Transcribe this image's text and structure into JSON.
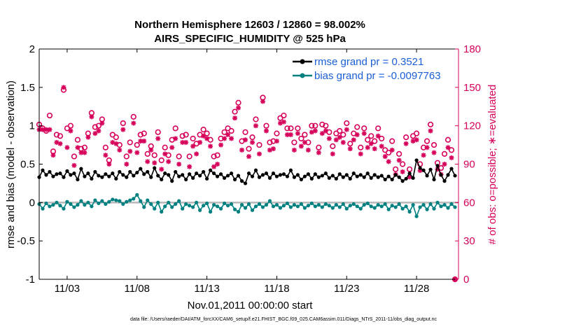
{
  "chart_data": {
    "type": "line",
    "title": "Northern Hemisphere 12603 / 12860 = 98.002%",
    "subtitle": "AIRS_SPECIFIC_HUMIDITY @ 525 hPa",
    "xlabel": "Nov.01,2011 00:00:00 start",
    "ylabel_left": "rmse and bias (model - observation)",
    "ylabel_right": "# of obs: o=possible; ∗=evaluated",
    "ylim_left": [
      -1,
      2
    ],
    "ylim_right": [
      0,
      180
    ],
    "xlim_days": [
      1,
      31
    ],
    "x_ticks": [
      {
        "day": 3,
        "label": "11/03"
      },
      {
        "day": 8,
        "label": "11/08"
      },
      {
        "day": 13,
        "label": "11/13"
      },
      {
        "day": 18,
        "label": "11/18"
      },
      {
        "day": 23,
        "label": "11/23"
      },
      {
        "day": 28,
        "label": "11/28"
      }
    ],
    "y_ticks_left": [
      {
        "v": 2,
        "label": "2"
      },
      {
        "v": 1.5,
        "label": "1.5"
      },
      {
        "v": 1,
        "label": "1"
      },
      {
        "v": 0.5,
        "label": "0.5"
      },
      {
        "v": 0,
        "label": "0"
      },
      {
        "v": -0.5,
        "label": "-0.5"
      },
      {
        "v": -1,
        "label": "-1"
      }
    ],
    "y_ticks_right": [
      {
        "v": 180,
        "label": "180"
      },
      {
        "v": 150,
        "label": "150"
      },
      {
        "v": 120,
        "label": "120"
      },
      {
        "v": 90,
        "label": "90"
      },
      {
        "v": 60,
        "label": "60"
      },
      {
        "v": 30,
        "label": "30"
      },
      {
        "v": 0,
        "label": "0"
      }
    ],
    "legend": [
      {
        "name": "rmse grand pr = 0.3521",
        "color": "#000000"
      },
      {
        "name": "bias grand pr = -0.0097763",
        "color": "#008080"
      }
    ],
    "x_days": [
      1.0,
      1.25,
      1.5,
      1.75,
      2.0,
      2.25,
      2.5,
      2.75,
      3.0,
      3.25,
      3.5,
      3.75,
      4.0,
      4.25,
      4.5,
      4.75,
      5.0,
      5.25,
      5.5,
      5.75,
      6.0,
      6.25,
      6.5,
      6.75,
      7.0,
      7.25,
      7.5,
      7.75,
      8.0,
      8.25,
      8.5,
      8.75,
      9.0,
      9.25,
      9.5,
      9.75,
      10.0,
      10.25,
      10.5,
      10.75,
      11.0,
      11.25,
      11.5,
      11.75,
      12.0,
      12.25,
      12.5,
      12.75,
      13.0,
      13.25,
      13.5,
      13.75,
      14.0,
      14.25,
      14.5,
      14.75,
      15.0,
      15.25,
      15.5,
      15.75,
      16.0,
      16.25,
      16.5,
      16.75,
      17.0,
      17.25,
      17.5,
      17.75,
      18.0,
      18.25,
      18.5,
      18.75,
      19.0,
      19.25,
      19.5,
      19.75,
      20.0,
      20.25,
      20.5,
      20.75,
      21.0,
      21.25,
      21.5,
      21.75,
      22.0,
      22.25,
      22.5,
      22.75,
      23.0,
      23.25,
      23.5,
      23.75,
      24.0,
      24.25,
      24.5,
      24.75,
      25.0,
      25.25,
      25.5,
      25.75,
      26.0,
      26.25,
      26.5,
      26.75,
      27.0,
      27.25,
      27.5,
      27.75,
      28.0,
      28.25,
      28.5,
      28.75,
      29.0,
      29.25,
      29.5,
      29.75,
      30.0,
      30.25,
      30.5,
      30.75
    ],
    "series": [
      {
        "name": "rmse",
        "color": "#000000",
        "values": [
          0.33,
          0.42,
          0.36,
          0.4,
          0.34,
          0.37,
          0.38,
          0.33,
          0.41,
          0.36,
          0.38,
          0.3,
          0.44,
          0.34,
          0.38,
          0.31,
          0.4,
          0.35,
          0.33,
          0.37,
          0.34,
          0.38,
          0.31,
          0.4,
          0.36,
          0.33,
          0.4,
          0.35,
          0.39,
          0.44,
          0.37,
          0.4,
          0.33,
          0.45,
          0.35,
          0.3,
          0.38,
          0.36,
          0.28,
          0.4,
          0.34,
          0.36,
          0.3,
          0.37,
          0.32,
          0.38,
          0.35,
          0.4,
          0.31,
          0.42,
          0.38,
          0.34,
          0.37,
          0.32,
          0.35,
          0.38,
          0.3,
          0.35,
          0.28,
          0.25,
          0.38,
          0.34,
          0.42,
          0.33,
          0.36,
          0.38,
          0.32,
          0.38,
          0.34,
          0.36,
          0.37,
          0.34,
          0.42,
          0.33,
          0.36,
          0.3,
          0.34,
          0.37,
          0.31,
          0.37,
          0.33,
          0.35,
          0.38,
          0.32,
          0.35,
          0.31,
          0.37,
          0.33,
          0.36,
          0.31,
          0.38,
          0.34,
          0.36,
          0.33,
          0.38,
          0.32,
          0.36,
          0.33,
          0.35,
          0.3,
          0.34,
          0.3,
          0.36,
          0.33,
          0.28,
          0.31,
          0.38,
          0.32,
          0.55,
          0.45,
          0.42,
          0.35,
          0.43,
          0.3,
          0.48,
          0.36,
          0.28,
          0.36,
          0.44,
          0.35
        ]
      },
      {
        "name": "bias",
        "color": "#008080",
        "values": [
          -0.02,
          -0.08,
          -0.01,
          -0.05,
          -0.03,
          0.0,
          -0.04,
          -0.08,
          0.01,
          -0.02,
          -0.06,
          -0.03,
          0.02,
          -0.03,
          0.0,
          -0.05,
          0.03,
          -0.01,
          0.02,
          -0.02,
          0.01,
          0.04,
          0.03,
          0.02,
          -0.02,
          0.01,
          0.03,
          0.05,
          0.1,
          0.02,
          -0.06,
          0.03,
          -0.02,
          -0.08,
          0.0,
          -0.12,
          -0.05,
          0.0,
          -0.06,
          -0.02,
          0.02,
          -0.08,
          -0.02,
          -0.04,
          -0.06,
          0.0,
          -0.1,
          -0.04,
          -0.01,
          -0.12,
          -0.03,
          -0.05,
          -0.08,
          -0.01,
          -0.04,
          -0.02,
          -0.09,
          -0.12,
          -0.03,
          -0.07,
          -0.02,
          -0.1,
          -0.05,
          -0.02,
          -0.06,
          -0.03,
          0.02,
          -0.05,
          -0.03,
          -0.07,
          -0.04,
          -0.01,
          -0.06,
          -0.03,
          -0.05,
          -0.02,
          -0.07,
          -0.04,
          -0.01,
          -0.05,
          -0.03,
          -0.06,
          -0.02,
          -0.04,
          -0.07,
          -0.03,
          -0.06,
          -0.02,
          -0.08,
          -0.04,
          -0.02,
          -0.05,
          -0.08,
          -0.03,
          -0.01,
          -0.05,
          -0.07,
          -0.03,
          -0.05,
          -0.02,
          -0.09,
          -0.04,
          -0.06,
          -0.02,
          -0.08,
          -0.05,
          -0.12,
          -0.03,
          -0.18,
          -0.06,
          -0.03,
          -0.09,
          -0.02,
          -0.08,
          0.0,
          -0.05,
          -0.03,
          -0.07,
          -0.02,
          -0.06
        ]
      },
      {
        "name": "obs possible",
        "color": "#d6005a",
        "marker": "o",
        "values": [
          121,
          118,
          116,
          128,
          100,
          113,
          112,
          148,
          118,
          120,
          96,
          109,
          102,
          103,
          114,
          130,
          119,
          120,
          125,
          103,
          93,
          113,
          111,
          105,
          122,
          96,
          107,
          127,
          105,
          113,
          114,
          98,
          104,
          97,
          115,
          93,
          103,
          97,
          109,
          118,
          96,
          112,
          113,
          96,
          110,
          106,
          113,
          117,
          114,
          109,
          96,
          97,
          110,
          115,
          118,
          116,
          131,
          138,
          108,
          115,
          102,
          111,
          125,
          105,
          142,
          120,
          107,
          108,
          114,
          126,
          128,
          118,
          118,
          107,
          118,
          110,
          113,
          107,
          120,
          120,
          103,
          121,
          120,
          115,
          104,
          114,
          116,
          113,
          122,
          106,
          114,
          119,
          103,
          118,
          109,
          112,
          108,
          118,
          110,
          101,
          99,
          108,
          86,
          98,
          90,
          111,
          86,
          112,
          114,
          90,
          103,
          108,
          121,
          105,
          91,
          87,
          98,
          109,
          101,
          0
        ]
      },
      {
        "name": "obs evaluated",
        "color": "#d6005a",
        "marker": "*",
        "values": [
          117,
          117,
          117,
          117,
          97,
          107,
          106,
          150,
          103,
          116,
          89,
          103,
          99,
          99,
          111,
          127,
          114,
          116,
          122,
          97,
          90,
          107,
          106,
          101,
          117,
          90,
          100,
          122,
          99,
          108,
          108,
          92,
          101,
          91,
          110,
          86,
          98,
          92,
          103,
          110,
          90,
          107,
          107,
          88,
          104,
          98,
          107,
          112,
          110,
          104,
          88,
          90,
          105,
          110,
          113,
          110,
          126,
          134,
          101,
          109,
          96,
          107,
          120,
          98,
          139,
          116,
          101,
          102,
          108,
          122,
          123,
          113,
          113,
          101,
          114,
          104,
          107,
          101,
          115,
          116,
          99,
          114,
          116,
          110,
          98,
          109,
          111,
          107,
          117,
          102,
          109,
          113,
          98,
          114,
          103,
          106,
          102,
          112,
          104,
          96,
          92,
          101,
          82,
          93,
          84,
          106,
          80,
          108,
          109,
          85,
          97,
          103,
          116,
          99,
          86,
          82,
          90,
          103,
          95,
          0
        ]
      }
    ],
    "footnote": "data file: /Users/raeder/DAI/ATM_forcXX/CAM6_setup/f.e21.FHIST_BGC.f09_025.CAM6assim.011/Diags_NTrS_2011-11/obs_diag_output.nc"
  },
  "colors": {
    "rmse": "#000000",
    "bias": "#008080",
    "obs": "#d6005a",
    "legend_text": "#1a5fd6",
    "zero_line": "#b8b8b8"
  }
}
